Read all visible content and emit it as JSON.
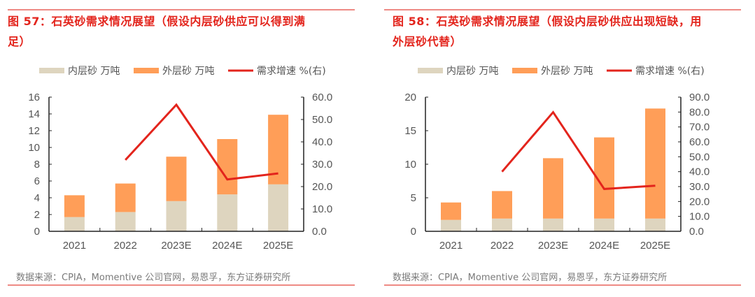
{
  "colors": {
    "inner": "#ded5bf",
    "outer": "#ff9e58",
    "line": "#e3241c",
    "title": "#e3241c"
  },
  "legend": [
    "内层砂 万吨",
    "外层砂 万吨",
    "需求增速 %(右)"
  ],
  "chart_data": [
    {
      "type": "bar",
      "title": "图 57：石英砂需求情况展望（假设内层砂供应可以得到满足）",
      "title_lines": [
        "图 57：石英砂需求情况展望（假设内层砂供应可以得到满",
        "足）"
      ],
      "source": "数据来源：CPIA，Momentive 公司官网，易恩孚，东方证券研究所",
      "categories": [
        "2021",
        "2022",
        "2023E",
        "2024E",
        "2025E"
      ],
      "stacked": true,
      "series": [
        {
          "name": "内层砂 万吨",
          "type": "bar",
          "values": [
            1.7,
            2.3,
            3.6,
            4.4,
            5.6
          ]
        },
        {
          "name": "外层砂 万吨",
          "type": "bar",
          "values": [
            2.6,
            3.4,
            5.3,
            6.6,
            8.3
          ]
        },
        {
          "name": "需求增速 %(右)",
          "type": "line",
          "axis": "right",
          "values": [
            null,
            31.9,
            56.6,
            23.2,
            25.9
          ]
        }
      ],
      "ylim": [
        0,
        16
      ],
      "yticks": [
        "0",
        "2",
        "4",
        "6",
        "8",
        "10",
        "12",
        "14",
        "16"
      ],
      "y2lim": [
        0,
        60
      ],
      "y2ticks": [
        "0.0",
        "10.0",
        "20.0",
        "30.0",
        "40.0",
        "50.0",
        "60.0"
      ],
      "legend_position": "top",
      "grid": false
    },
    {
      "type": "bar",
      "title": "图 58：石英砂需求情况展望（假设内层砂供应出现短缺，用外层砂代替）",
      "title_lines": [
        "图 58：石英砂需求情况展望（假设内层砂供应出现短缺，用",
        "外层砂代替）"
      ],
      "source": "数据来源：CPIA，Momentive 公司官网，易恩孚，东方证券研究所",
      "categories": [
        "2021",
        "2022",
        "2023E",
        "2024E",
        "2025E"
      ],
      "stacked": true,
      "series": [
        {
          "name": "内层砂 万吨",
          "type": "bar",
          "values": [
            1.7,
            1.9,
            1.9,
            1.9,
            1.9
          ]
        },
        {
          "name": "外层砂 万吨",
          "type": "bar",
          "values": [
            2.6,
            4.1,
            9.0,
            12.1,
            16.4
          ]
        },
        {
          "name": "需求增速 %(右)",
          "type": "line",
          "axis": "right",
          "values": [
            null,
            40.0,
            79.9,
            28.4,
            30.6
          ]
        }
      ],
      "ylim": [
        0,
        20
      ],
      "yticks": [
        "0",
        "5",
        "10",
        "15",
        "20"
      ],
      "y2lim": [
        0,
        90
      ],
      "y2ticks": [
        "0.0",
        "10.0",
        "20.0",
        "30.0",
        "40.0",
        "50.0",
        "60.0",
        "70.0",
        "80.0",
        "90.0"
      ],
      "legend_position": "top",
      "grid": false
    }
  ]
}
